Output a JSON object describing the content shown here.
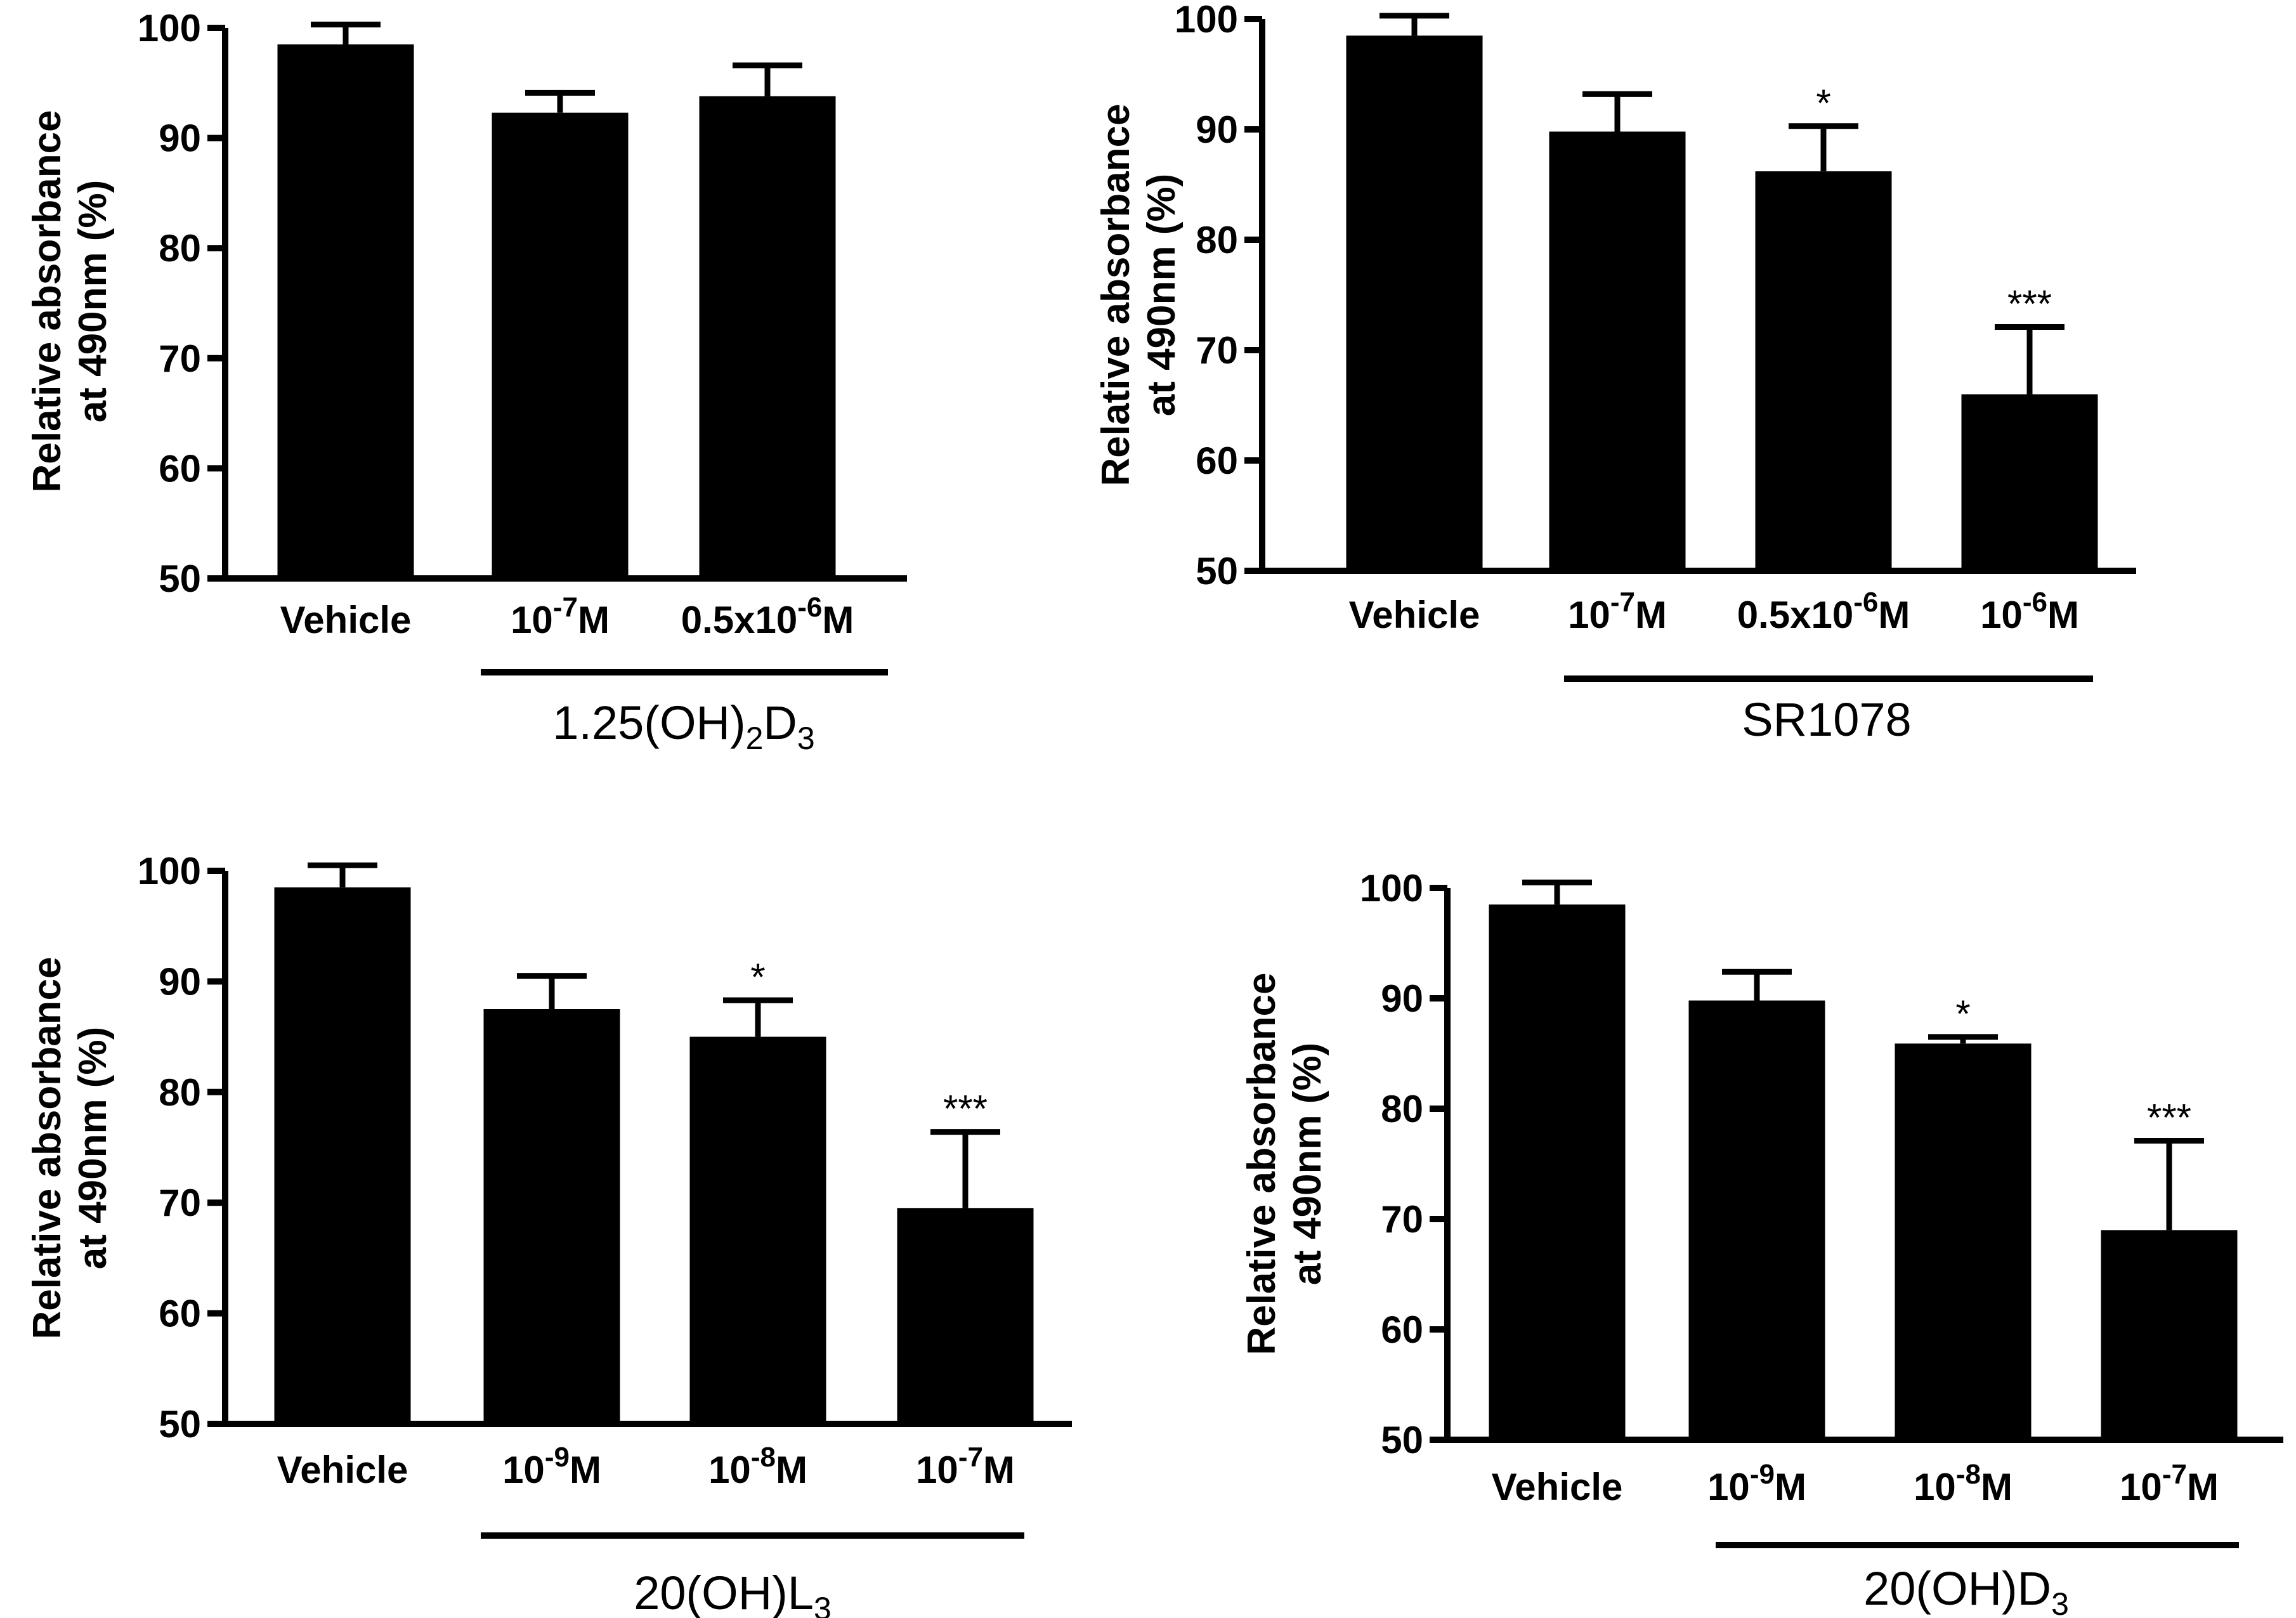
{
  "chart_data": [
    {
      "type": "bar",
      "ylabel_line1": "Relative absorbance",
      "ylabel_line2": "at 490nm (%)",
      "ylim": [
        50,
        100
      ],
      "ytick_labels": [
        "50",
        "60",
        "70",
        "80",
        "90",
        "100"
      ],
      "categories": [
        {
          "base": "Vehicle",
          "sup": "",
          "suffix": ""
        },
        {
          "base": "10",
          "sup": "-7",
          "suffix": "M"
        },
        {
          "base": "0.5x10",
          "sup": "-6",
          "suffix": "M"
        }
      ],
      "values": [
        98.5,
        92.3,
        93.8
      ],
      "errors": [
        1.8,
        1.8,
        2.8
      ],
      "significance": [
        "",
        "",
        ""
      ],
      "group_label": {
        "main": "1.25(OH)",
        "sub1": "2",
        "mid": "D",
        "sub2": "3"
      }
    },
    {
      "type": "bar",
      "ylabel_line1": "Relative absorbance",
      "ylabel_line2": "at 490nm (%)",
      "ylim": [
        50,
        100
      ],
      "ytick_labels": [
        "50",
        "60",
        "70",
        "80",
        "90",
        "100"
      ],
      "categories": [
        {
          "base": "Vehicle",
          "sup": "",
          "suffix": ""
        },
        {
          "base": "10",
          "sup": "-7",
          "suffix": "M"
        },
        {
          "base": "0.5x10",
          "sup": "-6",
          "suffix": "M"
        },
        {
          "base": "10",
          "sup": "-6",
          "suffix": "M"
        }
      ],
      "values": [
        98.5,
        89.8,
        86.2,
        66
      ],
      "errors": [
        1.8,
        3.4,
        4.1,
        6.1
      ],
      "significance": [
        "",
        "",
        "*",
        "***"
      ],
      "group_label": {
        "main": "SR1078",
        "sub1": "",
        "mid": "",
        "sub2": ""
      }
    },
    {
      "type": "bar",
      "ylabel_line1": "Relative absorbance",
      "ylabel_line2": "at 490nm (%)",
      "ylim": [
        50,
        100
      ],
      "ytick_labels": [
        "50",
        "60",
        "70",
        "80",
        "90",
        "100"
      ],
      "categories": [
        {
          "base": "Vehicle",
          "sup": "",
          "suffix": ""
        },
        {
          "base": "10",
          "sup": "-9",
          "suffix": "M"
        },
        {
          "base": "10",
          "sup": "-8",
          "suffix": "M"
        },
        {
          "base": "10",
          "sup": "-7",
          "suffix": "M"
        }
      ],
      "values": [
        98.5,
        87.5,
        85,
        69.5
      ],
      "errors": [
        2,
        3,
        3.3,
        6.9
      ],
      "significance": [
        "",
        "",
        "*",
        "***"
      ],
      "group_label": {
        "main": "20(OH)L",
        "sub1": "3",
        "mid": "",
        "sub2": ""
      }
    },
    {
      "type": "bar",
      "ylabel_line1": "Relative absorbance",
      "ylabel_line2": "at 490nm (%)",
      "ylim": [
        50,
        100
      ],
      "ytick_labels": [
        "50",
        "60",
        "70",
        "80",
        "90",
        "100"
      ],
      "categories": [
        {
          "base": "Vehicle",
          "sup": "",
          "suffix": ""
        },
        {
          "base": "10",
          "sup": "-9",
          "suffix": "M"
        },
        {
          "base": "10",
          "sup": "-8",
          "suffix": "M"
        },
        {
          "base": "10",
          "sup": "-7",
          "suffix": "M"
        }
      ],
      "values": [
        98.5,
        89.8,
        85.9,
        69
      ],
      "errors": [
        2,
        2.6,
        0.6,
        8.1
      ],
      "significance": [
        "",
        "",
        "*",
        "***"
      ],
      "group_label": {
        "main": "20(OH)D",
        "sub1": "3",
        "mid": "",
        "sub2": ""
      }
    }
  ]
}
